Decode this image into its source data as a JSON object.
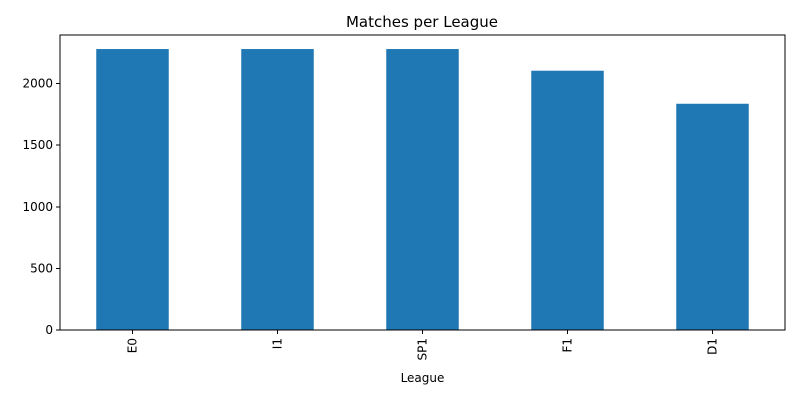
{
  "chart_data": {
    "type": "bar",
    "title": "Matches per League",
    "xlabel": "League",
    "ylabel": "",
    "categories": [
      "E0",
      "I1",
      "SP1",
      "F1",
      "D1"
    ],
    "values": [
      2280,
      2280,
      2280,
      2104,
      1836
    ],
    "ylim": [
      0,
      2394
    ],
    "yticks": [
      0,
      500,
      1000,
      1500,
      2000
    ],
    "grid": false,
    "legend": "none",
    "bar_color": "#1f77b4"
  }
}
